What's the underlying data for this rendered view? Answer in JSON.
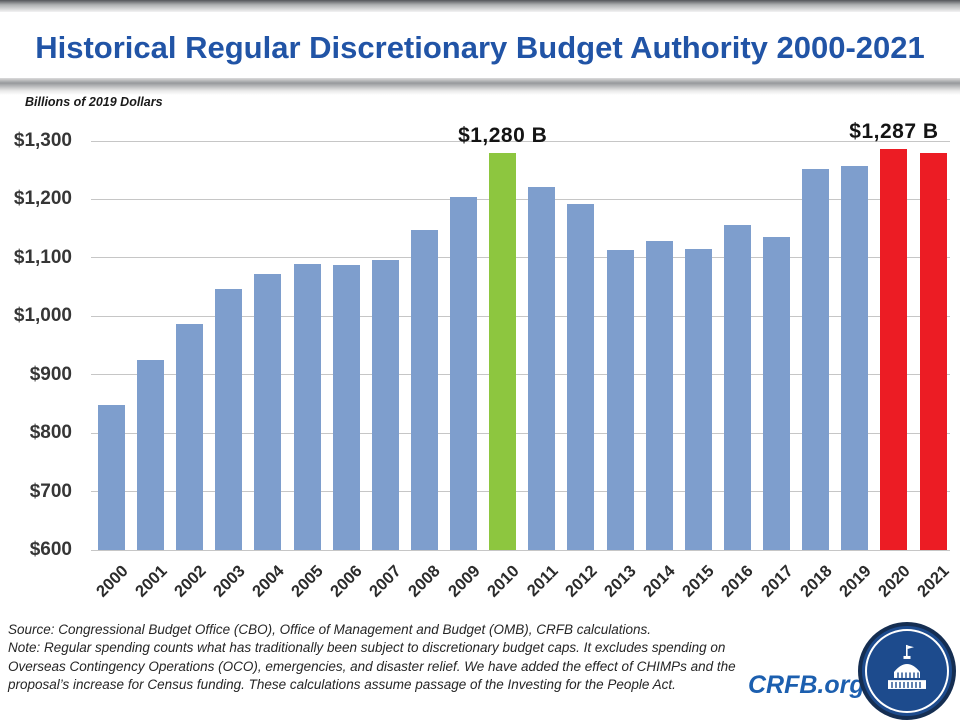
{
  "slide": {
    "title": "Historical Regular Discretionary Budget Authority 2000-2021",
    "units_label": "Billions of 2019 Dollars",
    "source_text": "Source: Congressional Budget Office (CBO), Office of Management and Budget (OMB), CRFB calculations.",
    "note_text": "Note: Regular spending counts what has traditionally been subject to discretionary budget caps. It excludes spending on Overseas Contingency Operations (OCO), emergencies, and disaster relief. We have added the effect of CHIMPs and the proposal’s increase for Census funding. These calculations assume passage of the Investing for the People Act.",
    "brand_label": "CRFB.org",
    "logo_icon": "capitol-building-icon",
    "colors": {
      "title_blue": "#2154a6",
      "brand_blue": "#1c5faf",
      "logo_navy": "#1d4b8d",
      "logo_border_navy": "#152e52"
    }
  },
  "chart_data": {
    "type": "bar",
    "title": "Historical Regular Discretionary Budget Authority 2000-2021",
    "ylabel": "Billions of 2019 Dollars",
    "xlabel": "",
    "categories": [
      "2000",
      "2001",
      "2002",
      "2003",
      "2004",
      "2005",
      "2006",
      "2007",
      "2008",
      "2009",
      "2010",
      "2011",
      "2012",
      "2013",
      "2014",
      "2015",
      "2016",
      "2017",
      "2018",
      "2019",
      "2020",
      "2021"
    ],
    "values": [
      848,
      925,
      986,
      1046,
      1072,
      1090,
      1088,
      1097,
      1147,
      1205,
      1280,
      1222,
      1192,
      1113,
      1129,
      1115,
      1157,
      1136,
      1252,
      1258,
      1287,
      1279
    ],
    "ylim": [
      600,
      1300
    ],
    "ytick_step": 100,
    "ytick_labels": [
      "$600",
      "$700",
      "$800",
      "$900",
      "$1,000",
      "$1,100",
      "$1,200",
      "$1,300"
    ],
    "grid": true,
    "legend": "none",
    "bar_color_default": "#7e9ecd",
    "bar_color_green": "#8dc63f",
    "bar_color_red": "#ec1c24",
    "gridline_color": "#c6c6c6",
    "highlights": {
      "2010": "green",
      "2020": "red",
      "2021": "red"
    },
    "annotations": [
      {
        "category": "2010",
        "text": "$1,280 B"
      },
      {
        "category": "2020",
        "text": "$1,287 B"
      }
    ]
  }
}
